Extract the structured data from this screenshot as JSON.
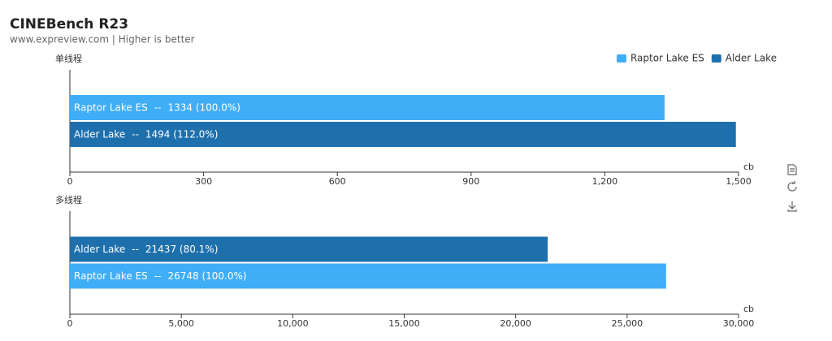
{
  "title": "CINEBench R23",
  "subtitle": "www.expreview.com | Higher is better",
  "legend": [
    {
      "name": "Raptor Lake ES",
      "color": "#40adf7"
    },
    {
      "name": "Alder Lake",
      "color": "#1e70ad"
    }
  ],
  "chart_data": [
    {
      "type": "bar",
      "orientation": "horizontal",
      "ylabel": "单线程",
      "xlabel": "cb",
      "separator": "--",
      "categories": [
        "Raptor Lake ES",
        "Alder Lake"
      ],
      "values": [
        1334,
        1494
      ],
      "value_labels": [
        "1334 (100.0%)",
        "1494 (112.0%)"
      ],
      "xlim": [
        0,
        1500
      ],
      "xticks": [
        0,
        300,
        600,
        900,
        {
          "value": 1200,
          "label": "1,200"
        },
        {
          "value": 1500,
          "label": "1,500"
        }
      ]
    },
    {
      "type": "bar",
      "orientation": "horizontal",
      "ylabel": "多线程",
      "xlabel": "cb",
      "separator": "--",
      "categories": [
        "Alder Lake",
        "Raptor Lake ES"
      ],
      "values": [
        21437,
        26748
      ],
      "value_labels": [
        "21437 (80.1%)",
        "26748 (100.0%)"
      ],
      "xlim": [
        0,
        30000
      ],
      "xticks": [
        0,
        {
          "value": 5000,
          "label": "5,000"
        },
        {
          "value": 10000,
          "label": "10,000"
        },
        {
          "value": 15000,
          "label": "15,000"
        },
        {
          "value": 20000,
          "label": "20,000"
        },
        {
          "value": 25000,
          "label": "25,000"
        },
        {
          "value": 30000,
          "label": "30,000"
        }
      ]
    }
  ]
}
